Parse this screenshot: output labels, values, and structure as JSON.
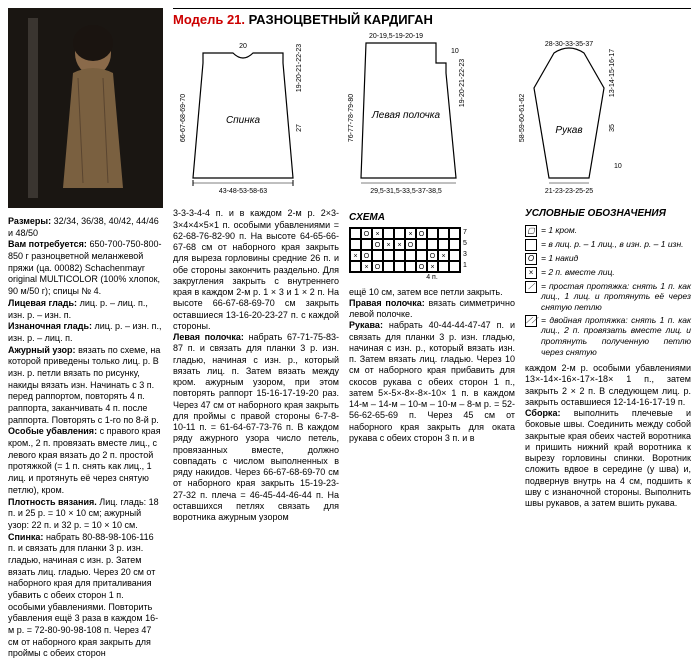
{
  "header": {
    "model_label": "Модель 21.",
    "title": "РАЗНОЦВЕТНЫЙ КАРДИГАН"
  },
  "sizes_label": "Размеры:",
  "sizes": "32/34, 36/38, 40/42, 44/46 и 48/50",
  "materials_label": "Вам потребуется:",
  "materials": "650-700-750-800-850 г разноцветной меланжевой пряжи (ца. 00082) Schachenmayr original MULTICOLOR (100% хлопок, 90 м/50 г); спицы № 4.",
  "stitch1_label": "Лицевая гладь:",
  "stitch1": "лиц. р. – лиц. п., изн. р. – изн. п.",
  "stitch2_label": "Изнаночная гладь:",
  "stitch2": "лиц. р. – изн. п., изн. р. – лиц. п.",
  "stitch3_label": "Ажурный узор:",
  "stitch3": "вязать по схеме, на которой приведены только лиц. р. В изн. р. петли вязать по рисунку, накиды вязать изн. Начинать с 3 п. перед раппортом, повторять 4 п. раппорта, заканчивать 4 п. после раппорта. Повторять с 1-го по 8-й р.",
  "stitch4_label": "Особые убавления:",
  "stitch4": "с правого края кром., 2 п. провязать вместе лиц., с левого края вязать до 2 п. простой протяжкой (= 1 п. снять как лиц., 1 лиц. и протянуть её через снятую петлю), кром.",
  "density_label": "Плотность вязания.",
  "density": "Лиц. гладь: 18 п. и 25 р. = 10 × 10 см; ажурный узор: 22 п. и 32 р. = 10 × 10 см.",
  "back_label": "Спинка:",
  "back_text": "набрать 80-88-98-106-116 п. и связать для планки 3 р. изн. гладью, начиная с изн. р. Затем вязать лиц. гладью. Через 20 см от наборного края для приталивания убавить с обеих сторон 1 п. особыми убавлениями. Повторить убавления ещё 3 раза в каждом 16-м р. = 72-80-90-98-108 п. Через 47 см от наборного края закрыть для проймы с обеих сторон",
  "col2_text1": "3-3-3-4-4 п. и в каждом 2-м р. 2×3-3×4×4×5×1 п. особыми убавлениями = 62-68-76-82-90 п. На высоте 64-65-66-67-68 см от наборного края закрыть для выреза горловины средние 26 п. и обе стороны закончить раздельно. Для закругления закрыть с внутреннего края в каждом 2-м р. 1 × 3 и 1 × 2 п. На высоте 66-67-68-69-70 см закрыть оставшиеся 13-16-20-23-27 п. с каждой стороны.",
  "left_front_label": "Левая полочка:",
  "left_front_text": "набрать 67-71-75-83-87 п. и связать для планки 3 р. изн. гладью, начиная с изн. р., который вязать лиц. п. Затем вязать между кром. ажурным узором, при этом повторять раппорт 15-16-17-19-20 раз. Через 47 см от наборного края закрыть для проймы с правой стороны 6-7-8-10-11 п. = 61-64-67-73-76 п. В каждом ряду ажурного узора число петель, провязанных вместе, должно совпадать с числом выполненных в ряду накидов. Через 66-67-68-69-70 см от наборного края закрыть 15-19-23-27-32 п. плеча = 46-45-44-46-44 п. На оставшихся петлях связать для воротника ажурным узором",
  "col3_text1": "ещё 10 см, затем все петли закрыть.",
  "right_front_label": "Правая полочка:",
  "right_front_text": "вязать симметрично левой полочке.",
  "sleeve_label": "Рукава:",
  "sleeve_text": "набрать 40-44-44-47-47 п. и связать для планки 3 р. изн. гладью, начиная с изн. р., который вязать изн. п. Затем вязать лиц. гладью. Через 10 см от наборного края прибавить для скосов рукава с обеих сторон 1 п., затем 5×-5×-8×-8×-10× 1 п. в каждом 14-м – 14-м – 10-м – 10-м – 8-м р. = 52-56-62-65-69 п. Через 45 см от наборного края закрыть для оката рукава с обеих сторон 3 п. и в",
  "col4_text1": "каждом 2-м р. особыми убавлениями 13×-14×-16×-17×-18× 1 п., затем закрыть 2 × 2 п. В следующем лиц. р. закрыть оставшиеся 12-14-16-17-19 п.",
  "assembly_label": "Сборка:",
  "assembly_text": "выполнить плечевые и боковые швы. Соединить между собой закрытые края обеих частей воротника и пришить нижний край воротника к вырезу горловины спинки. Воротник сложить вдвое в середине (у шва) и, подвернув внутрь на 4 см, подшить к шву с изнаночной стороны. Выполнить швы рукавов, а затем вшить рукава.",
  "schematics": {
    "back": {
      "label": "Спинка",
      "top_dims": "20",
      "left_dims": "66-67-68-69-70",
      "right_dims": "27",
      "right_upper": "19-20-21-22-23",
      "bottom_dims": "43-48-53-58-63"
    },
    "front": {
      "label": "Левая полочка",
      "top_dims": "20-19,5-19-20-19",
      "right_upper": "19-20-21-22-23",
      "left_dims": "76-77-78-79-80",
      "bottom_dims": "29,5-31,5-33,5-37-38,5",
      "top_right": "10"
    },
    "sleeve": {
      "label": "Рукав",
      "top_dims": "28-30-33-35-37",
      "right_dims": "13-14-15-16-17",
      "right_lower": "35",
      "left_dims": "58-59-60-61-62",
      "bottom_dims": "21-23-23-25-25",
      "right_bottom": "10"
    }
  },
  "schema": {
    "title": "СХЕМА",
    "rows_label": [
      "7",
      "5",
      "3",
      "1"
    ],
    "bottom_label": "4 п.",
    "grid": [
      [
        "",
        "O",
        "×",
        "",
        "",
        "×",
        "O",
        "",
        "",
        ""
      ],
      [
        "",
        "",
        "O",
        "×",
        "×",
        "O",
        "",
        "",
        "",
        ""
      ],
      [
        "×",
        "O",
        "",
        "",
        "",
        "",
        "",
        "O",
        "×",
        ""
      ],
      [
        "",
        "×",
        "O",
        "",
        "",
        "",
        "O",
        "×",
        "",
        ""
      ]
    ]
  },
  "legend": {
    "title": "УСЛОВНЫЕ ОБОЗНАЧЕНИЯ",
    "items": [
      {
        "sym": "▢",
        "text": "= 1 кром."
      },
      {
        "sym": "",
        "text": "= в лиц. р. – 1 лиц., в изн. р. – 1 изн."
      },
      {
        "sym": "O",
        "text": "= 1 накид"
      },
      {
        "sym": "×",
        "text": "= 2 п. вместе лиц."
      },
      {
        "sym": "⟋",
        "text": "= простая протяжка: снять 1 п. как лиц., 1 лиц. и протянуть её через снятую петлю"
      },
      {
        "sym": "⟋⟋",
        "text": "= двойная протяжка: снять 1 п. как лиц., 2 п. провязать вместе лиц. и протянуть полученную петлю через снятую"
      }
    ]
  }
}
